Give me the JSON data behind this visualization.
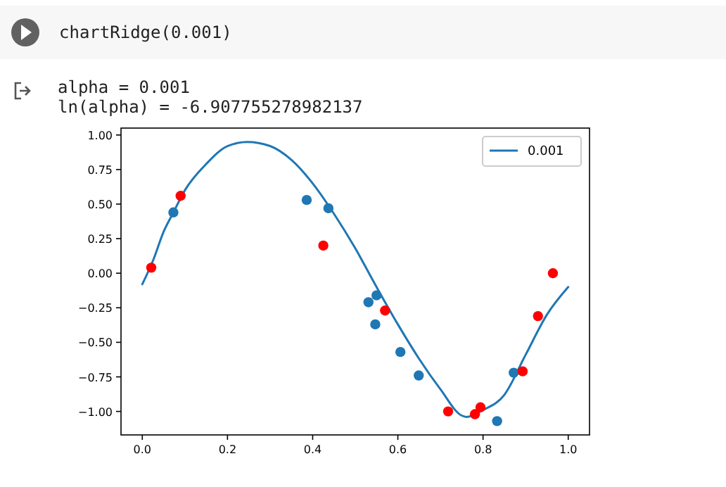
{
  "chart_data": {
    "type": "line",
    "annotations": [
      "chartRidge(0.001)",
      "alpha =  0.001",
      "ln(alpha) =  -6.907755278982137"
    ],
    "series": [
      {
        "name": "0.001",
        "color": "#1f77b4",
        "marker": "none",
        "x": [
          0,
          0.025,
          0.05,
          0.073,
          0.1,
          0.15,
          0.2,
          0.246,
          0.3,
          0.35,
          0.4,
          0.45,
          0.5,
          0.55,
          0.6,
          0.65,
          0.7,
          0.75,
          0.761,
          0.8,
          0.85,
          0.9,
          0.95,
          1.0
        ],
        "values": [
          -0.08,
          0.09,
          0.3,
          0.44,
          0.6,
          0.79,
          0.92,
          0.95,
          0.92,
          0.82,
          0.65,
          0.43,
          0.18,
          -0.1,
          -0.37,
          -0.62,
          -0.84,
          -1.03,
          -1.04,
          -0.99,
          -0.88,
          -0.59,
          -0.3,
          -0.1
        ]
      },
      {
        "type": "scatter",
        "color": "#1f77b4",
        "marker": "circle",
        "x": [
          0.073,
          0.386,
          0.437,
          0.531,
          0.55,
          0.547,
          0.606,
          0.649,
          0.872,
          0.833
        ],
        "values": [
          0.44,
          0.53,
          0.47,
          -0.21,
          -0.16,
          -0.37,
          -0.57,
          -0.74,
          -0.72,
          -1.07
        ]
      },
      {
        "type": "scatter",
        "color": "#ff0000",
        "marker": "circle",
        "x": [
          0.021,
          0.09,
          0.425,
          0.57,
          0.718,
          0.781,
          0.794,
          0.893,
          0.929,
          0.964
        ],
        "values": [
          0.04,
          0.56,
          0.2,
          -0.27,
          -1.0,
          -1.02,
          -0.97,
          -0.71,
          -0.31,
          0.0
        ]
      }
    ],
    "xlim": [
      -0.05,
      1.05
    ],
    "ylim": [
      -1.17,
      1.05
    ],
    "xticks": [
      {
        "value": 0,
        "label": "0.0"
      },
      {
        "value": 0.2,
        "label": "0.2"
      },
      {
        "value": 0.4,
        "label": "0.4"
      },
      {
        "value": 0.6,
        "label": "0.6"
      },
      {
        "value": 0.8,
        "label": "0.8"
      },
      {
        "value": 1,
        "label": "1.0"
      }
    ],
    "yticks": [
      {
        "value": -1,
        "label": "−1.00"
      },
      {
        "value": -0.75,
        "label": "−0.75"
      },
      {
        "value": -0.5,
        "label": "−0.50"
      },
      {
        "value": -0.25,
        "label": "−0.25"
      },
      {
        "value": 0,
        "label": "0.00"
      },
      {
        "value": 0.25,
        "label": "0.25"
      },
      {
        "value": 0.5,
        "label": "0.50"
      },
      {
        "value": 0.75,
        "label": "0.75"
      },
      {
        "value": 1,
        "label": "1.00"
      }
    ],
    "grid": false,
    "legend": "top right"
  }
}
